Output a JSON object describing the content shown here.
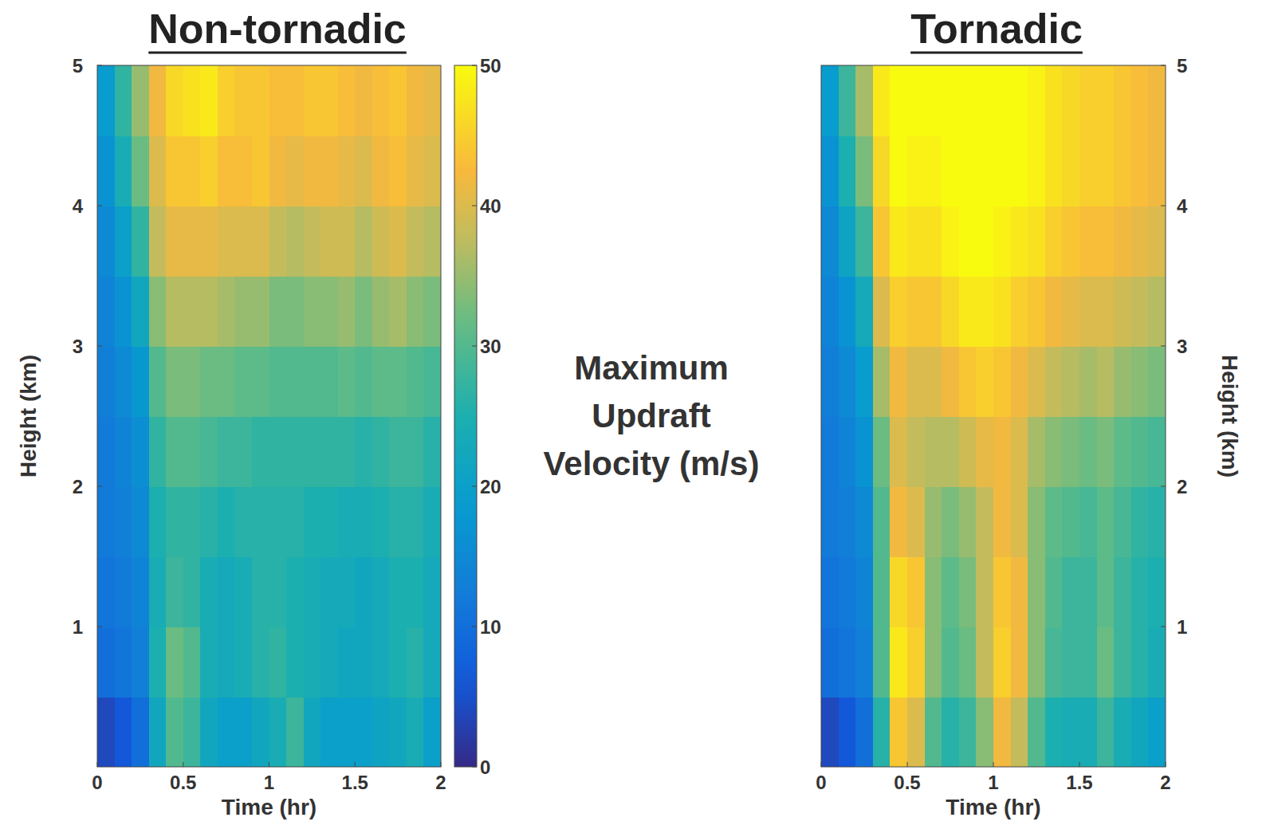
{
  "chart_data": [
    {
      "type": "heatmap",
      "title": "Non-tornadic",
      "x_label": "Time (hr)",
      "y_label": "Height (km)",
      "xlim": [
        0,
        2
      ],
      "ylim": [
        0,
        5
      ],
      "xticks": [
        0,
        0.5,
        1,
        1.5,
        2
      ],
      "yticks": [
        1,
        2,
        3,
        4,
        5
      ],
      "x": [
        0.05,
        0.15,
        0.25,
        0.35,
        0.45,
        0.55,
        0.65,
        0.75,
        0.85,
        0.95,
        1.05,
        1.15,
        1.25,
        1.35,
        1.45,
        1.55,
        1.65,
        1.75,
        1.85,
        1.95
      ],
      "y": [
        0.25,
        0.75,
        1.25,
        1.75,
        2.25,
        2.75,
        3.25,
        3.75,
        4.25,
        4.75
      ],
      "values": [
        [
          4,
          10,
          11,
          12,
          12,
          13,
          14,
          15,
          17,
          19
        ],
        [
          6,
          11,
          12,
          13,
          14,
          15,
          17,
          20,
          24,
          27
        ],
        [
          10,
          13,
          14,
          15,
          16,
          18,
          22,
          27,
          32,
          35
        ],
        [
          22,
          25,
          24,
          25,
          27,
          30,
          34,
          38,
          40,
          42
        ],
        [
          30,
          32,
          28,
          27,
          30,
          33,
          37,
          41,
          44,
          46
        ],
        [
          28,
          30,
          27,
          27,
          30,
          33,
          37,
          41,
          44,
          47
        ],
        [
          22,
          24,
          24,
          26,
          29,
          32,
          37,
          41,
          45,
          48
        ],
        [
          20,
          23,
          23,
          25,
          28,
          32,
          36,
          40,
          43,
          45
        ],
        [
          20,
          24,
          24,
          26,
          28,
          31,
          35,
          40,
          43,
          44
        ],
        [
          22,
          26,
          26,
          26,
          27,
          31,
          35,
          40,
          44,
          44
        ],
        [
          24,
          27,
          26,
          26,
          27,
          30,
          33,
          38,
          42,
          43
        ],
        [
          28,
          25,
          25,
          26,
          27,
          30,
          33,
          37,
          41,
          43
        ],
        [
          22,
          24,
          24,
          25,
          27,
          30,
          34,
          38,
          42,
          44
        ],
        [
          20,
          23,
          23,
          25,
          27,
          30,
          34,
          39,
          42,
          44
        ],
        [
          20,
          22,
          23,
          24,
          27,
          31,
          35,
          39,
          41,
          43
        ],
        [
          20,
          22,
          22,
          24,
          26,
          30,
          33,
          37,
          40,
          42
        ],
        [
          21,
          23,
          23,
          25,
          27,
          31,
          35,
          39,
          42,
          43
        ],
        [
          22,
          25,
          25,
          26,
          28,
          31,
          36,
          40,
          43,
          44
        ],
        [
          24,
          26,
          25,
          26,
          28,
          30,
          34,
          38,
          41,
          42
        ],
        [
          20,
          23,
          23,
          24,
          26,
          29,
          33,
          37,
          40,
          41
        ]
      ],
      "colorbar": {
        "label": "Maximum Updraft Velocity (m/s)",
        "range": [
          0,
          50
        ],
        "ticks": [
          0,
          10,
          20,
          30,
          40,
          50
        ]
      }
    },
    {
      "type": "heatmap",
      "title": "Tornadic",
      "x_label": "Time (hr)",
      "y_label": "Height (km)",
      "xlim": [
        0,
        2
      ],
      "ylim": [
        0,
        5
      ],
      "xticks": [
        0,
        0.5,
        1,
        1.5,
        2
      ],
      "yticks": [
        1,
        2,
        3,
        4,
        5
      ],
      "x": [
        0.05,
        0.15,
        0.25,
        0.35,
        0.45,
        0.55,
        0.65,
        0.75,
        0.85,
        0.95,
        1.05,
        1.15,
        1.25,
        1.35,
        1.45,
        1.55,
        1.65,
        1.75,
        1.85,
        1.95
      ],
      "y": [
        0.25,
        0.75,
        1.25,
        1.75,
        2.25,
        2.75,
        3.25,
        3.75,
        4.25,
        4.75
      ],
      "values": [
        [
          4,
          10,
          11,
          12,
          12,
          13,
          14,
          15,
          17,
          19
        ],
        [
          6,
          11,
          12,
          13,
          14,
          15,
          17,
          21,
          25,
          28
        ],
        [
          10,
          13,
          14,
          15,
          17,
          19,
          23,
          28,
          33,
          36
        ],
        [
          26,
          30,
          30,
          30,
          32,
          36,
          40,
          44,
          46,
          48
        ],
        [
          44,
          48,
          46,
          42,
          40,
          42,
          45,
          48,
          50,
          50
        ],
        [
          40,
          45,
          44,
          40,
          38,
          40,
          44,
          47,
          49,
          50
        ],
        [
          30,
          34,
          34,
          35,
          37,
          40,
          44,
          47,
          49,
          50
        ],
        [
          26,
          30,
          31,
          33,
          37,
          42,
          46,
          49,
          50,
          50
        ],
        [
          28,
          32,
          33,
          35,
          39,
          44,
          48,
          50,
          50,
          50
        ],
        [
          34,
          38,
          38,
          38,
          41,
          45,
          48,
          50,
          50,
          50
        ],
        [
          42,
          45,
          44,
          42,
          42,
          44,
          47,
          49,
          50,
          50
        ],
        [
          38,
          42,
          42,
          40,
          40,
          42,
          45,
          48,
          50,
          50
        ],
        [
          30,
          34,
          34,
          34,
          36,
          40,
          44,
          47,
          49,
          49
        ],
        [
          25,
          29,
          30,
          31,
          34,
          38,
          42,
          45,
          47,
          47
        ],
        [
          24,
          28,
          28,
          30,
          33,
          37,
          41,
          44,
          46,
          46
        ],
        [
          24,
          28,
          28,
          29,
          32,
          36,
          40,
          43,
          45,
          45
        ],
        [
          28,
          32,
          31,
          31,
          33,
          37,
          40,
          43,
          45,
          45
        ],
        [
          24,
          28,
          28,
          29,
          31,
          35,
          39,
          42,
          44,
          44
        ],
        [
          22,
          26,
          26,
          27,
          30,
          34,
          38,
          41,
          43,
          43
        ],
        [
          20,
          24,
          25,
          26,
          29,
          33,
          37,
          40,
          42,
          42
        ]
      ]
    }
  ]
}
